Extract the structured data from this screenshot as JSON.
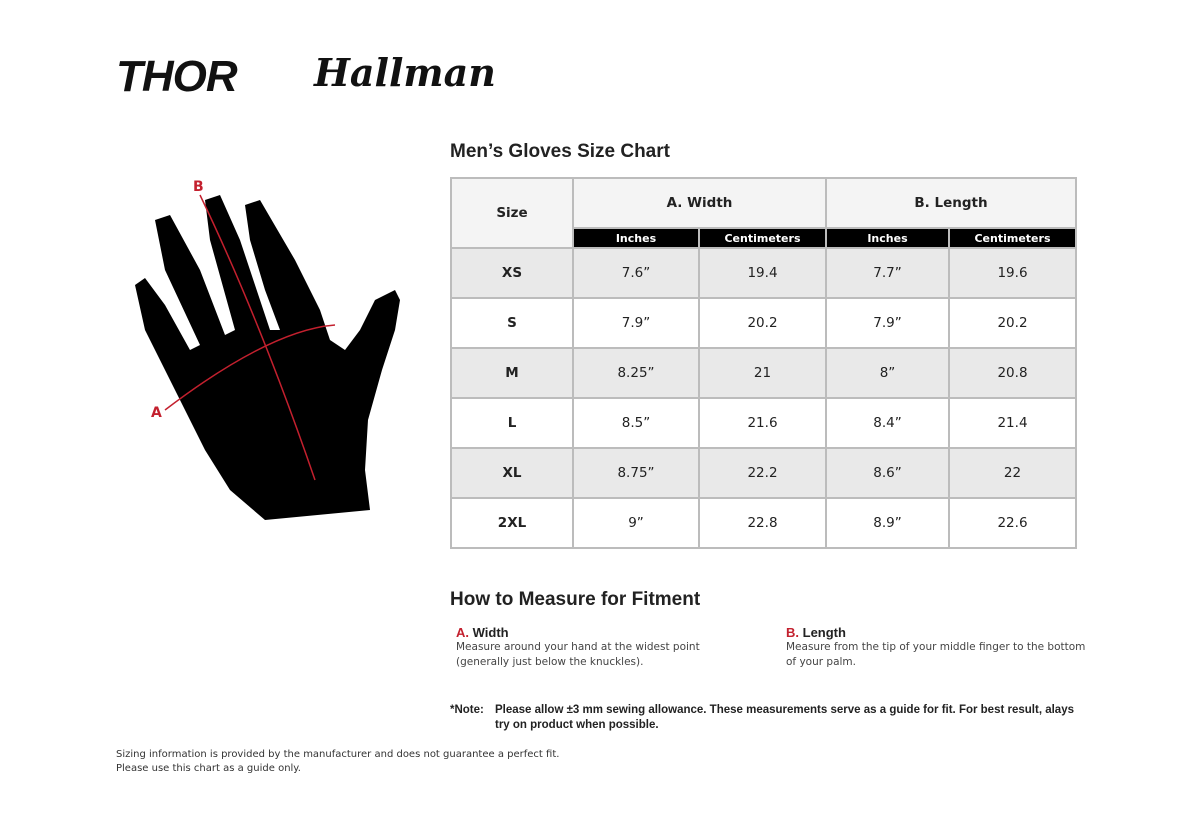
{
  "logos": {
    "brand1": "THOR",
    "brand2": "Hallman"
  },
  "chart": {
    "title": "Men’s Gloves Size Chart",
    "size_header": "Size",
    "groups": [
      "A. Width",
      "B. Length"
    ],
    "subheaders": [
      "Inches",
      "Centimeters",
      "Inches",
      "Centimeters"
    ],
    "rows": [
      [
        "XS",
        "7.6”",
        "19.4",
        "7.7”",
        "19.6"
      ],
      [
        "S",
        "7.9”",
        "20.2",
        "7.9”",
        "20.2"
      ],
      [
        "M",
        "8.25”",
        "21",
        "8”",
        "20.8"
      ],
      [
        "L",
        "8.5”",
        "21.6",
        "8.4”",
        "21.4"
      ],
      [
        "XL",
        "8.75”",
        "22.2",
        "8.6”",
        "22"
      ],
      [
        "2XL",
        "9”",
        "22.8",
        "8.9”",
        "22.6"
      ]
    ]
  },
  "diagram": {
    "label_a": "A",
    "label_b": "B",
    "accent": "#c3202e"
  },
  "measure": {
    "title": "How to Measure for Fitment",
    "width": {
      "letter": "A.",
      "label": "Width",
      "text": "Measure around your hand at the widest point (generally just below the knuckles)."
    },
    "length": {
      "letter": "B.",
      "label": "Length",
      "text": "Measure from the tip of your middle finger to the bottom of your palm."
    }
  },
  "note": {
    "label": "*Note:",
    "text": "Please allow ±3 mm sewing allowance. These measurements serve as a guide for fit. For best result, alays try on product when possible."
  },
  "footer": {
    "line1": "Sizing information is provided by the manufacturer and does not guarantee a perfect fit.",
    "line2": "Please use this chart as a guide only."
  }
}
